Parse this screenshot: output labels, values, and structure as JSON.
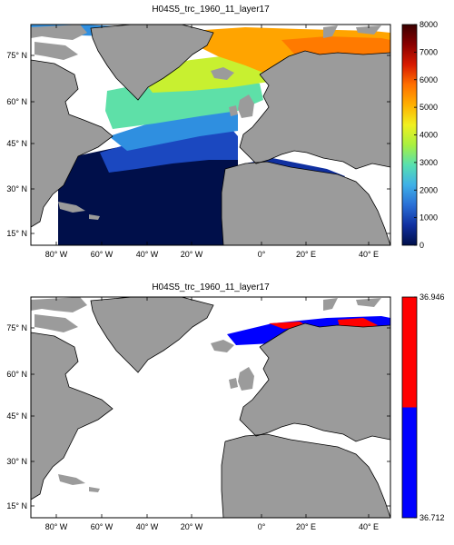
{
  "panels": [
    {
      "title": "H04S5_trc_1960_11_layer17",
      "colorbar": {
        "type": "continuous",
        "ticks": [
          "0",
          "1000",
          "2000",
          "3000",
          "4000",
          "5000",
          "6000",
          "7000",
          "8000"
        ],
        "min": 0,
        "max": 8000,
        "colormap": [
          "#000f4a",
          "#1030a0",
          "#2a6fd6",
          "#3fb0e8",
          "#57e0b0",
          "#a8f040",
          "#f0f020",
          "#ffb000",
          "#ff7000",
          "#d81a00",
          "#8a0000",
          "#3a0000"
        ]
      }
    },
    {
      "title": "H04S5_trc_1960_11_layer17",
      "colorbar": {
        "type": "binary",
        "ticks": [
          "36.712",
          "36.946"
        ],
        "min": 36.712,
        "max": 36.946,
        "colors": [
          "#0000ff",
          "#ff0000"
        ]
      }
    }
  ],
  "map": {
    "lat_labels": [
      "75° N",
      "60° N",
      "45° N",
      "30° N",
      "15° N"
    ],
    "lon_labels": [
      "80° W",
      "60° W",
      "40° W",
      "20° W",
      "0°",
      "20° E",
      "40° E"
    ],
    "land_color": "#9b9b9b",
    "ocean_nodata_color": "#ffffff"
  }
}
